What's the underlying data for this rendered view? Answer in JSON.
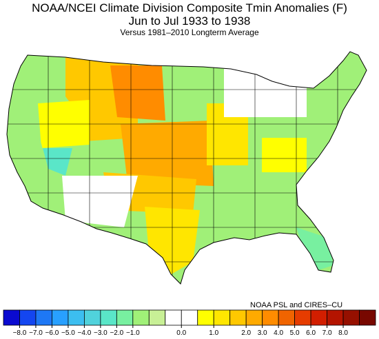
{
  "title": {
    "line1": "NOAA/NCEI Climate Division Composite Tmin Anomalies (F)",
    "line2": "Jun to Jul 1933 to 1938",
    "line3": "Versus 1981–2010 Longterm Average"
  },
  "credit": "NOAA PSL and CIRES–CU",
  "legend": {
    "colors": [
      "#0a0ad0",
      "#1446f0",
      "#1e78f5",
      "#28a0ff",
      "#3cbef0",
      "#50d2dc",
      "#5ae6c8",
      "#78f0a0",
      "#a0f078",
      "#c8f096",
      "#ffffff",
      "#ffffff",
      "#ffff00",
      "#ffe600",
      "#ffc800",
      "#ffaa00",
      "#ff8c00",
      "#f06400",
      "#e63c00",
      "#d21e00",
      "#b41400",
      "#961000",
      "#780800"
    ],
    "labels": [
      "−8.0",
      "−7.0",
      "−6.0",
      "−5.0",
      "−4.0",
      "−3.0",
      "−2.0",
      "−1.0",
      "0.0",
      "1.0",
      "2.0",
      "3.0",
      "4.0",
      "5.0",
      "6.0",
      "7.0",
      "8.0"
    ]
  },
  "map": {
    "regions": [
      {
        "name": "pacific-northwest",
        "color": "#a0f078"
      },
      {
        "name": "northern-rockies",
        "color": "#ffc800"
      },
      {
        "name": "northern-plains-core",
        "color": "#ff8c00"
      },
      {
        "name": "central-plains",
        "color": "#ffaa00"
      },
      {
        "name": "southern-plains",
        "color": "#ffc800"
      },
      {
        "name": "great-basin",
        "color": "#ffff00"
      },
      {
        "name": "southern-nevada",
        "color": "#5ae6c8"
      },
      {
        "name": "california",
        "color": "#a0f078"
      },
      {
        "name": "southwest",
        "color": "#ffffff"
      },
      {
        "name": "texas",
        "color": "#ffe600"
      },
      {
        "name": "gulf-coast",
        "color": "#a0f078"
      },
      {
        "name": "southeast",
        "color": "#a0f078"
      },
      {
        "name": "florida",
        "color": "#78f0a0"
      },
      {
        "name": "midwest",
        "color": "#ffe600"
      },
      {
        "name": "northeast",
        "color": "#a0f078"
      },
      {
        "name": "great-lakes",
        "color": "#ffffff"
      },
      {
        "name": "mid-atlantic",
        "color": "#ffff00"
      }
    ]
  }
}
